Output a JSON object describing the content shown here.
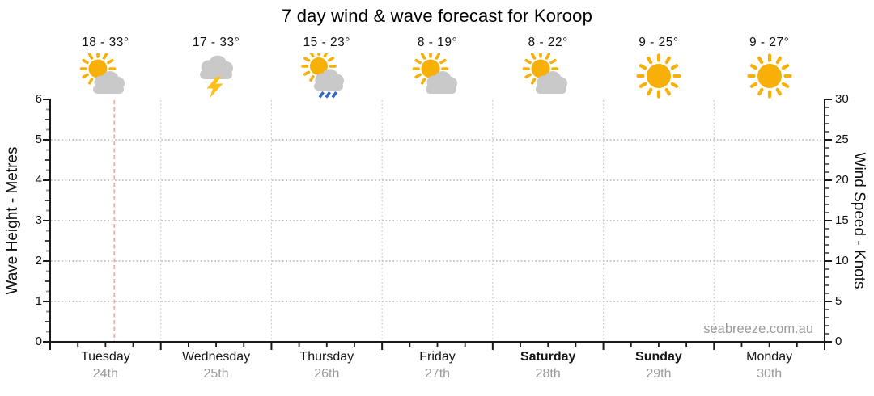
{
  "title": "7 day wind & wave forecast for Koroop",
  "watermark": "seabreeze.com.au",
  "left_axis": {
    "label": "Wave Height - Metres",
    "ticks": [
      0,
      1,
      2,
      3,
      4,
      5,
      6
    ]
  },
  "right_axis": {
    "label": "Wind Speed - Knots",
    "ticks": [
      0,
      5,
      10,
      15,
      20,
      25,
      30
    ]
  },
  "days": [
    {
      "name": "Tuesday",
      "date": "24th",
      "temp": "18 - 33°",
      "icon": "partly-cloudy",
      "weekend": false
    },
    {
      "name": "Wednesday",
      "date": "25th",
      "temp": "17 - 33°",
      "icon": "thunderstorm",
      "weekend": false
    },
    {
      "name": "Thursday",
      "date": "26th",
      "temp": "15 - 23°",
      "icon": "sun-showers",
      "weekend": false
    },
    {
      "name": "Friday",
      "date": "27th",
      "temp": "8 - 19°",
      "icon": "partly-cloudy",
      "weekend": false
    },
    {
      "name": "Saturday",
      "date": "28th",
      "temp": "8 - 22°",
      "icon": "partly-cloudy",
      "weekend": true
    },
    {
      "name": "Sunday",
      "date": "29th",
      "temp": "9 - 25°",
      "icon": "sunny",
      "weekend": true
    },
    {
      "name": "Monday",
      "date": "30th",
      "temp": "9 - 27°",
      "icon": "sunny",
      "weekend": false
    }
  ],
  "current_time_marker": {
    "day_index": 0,
    "day": "Tuesday",
    "position_fraction": 0.58
  },
  "colors": {
    "sun": "#F7B008",
    "cloud": "#C9C9C9",
    "rain": "#3366CC",
    "lightning": "#FBC01A",
    "axis": "#1A1A1A",
    "grid": "#A5A5A5",
    "day_boundary": "#C7C7C7",
    "minor_tick": "#999999",
    "half_tick": "#444444",
    "current_time_line": "#F5A7A1",
    "date_text": "#9A9A9A",
    "watermark_text": "#9B9B9B"
  },
  "chart_data": {
    "type": "line",
    "title": "7 day wind & wave forecast for Koroop",
    "x_axis": {
      "categories": [
        "Tuesday 24th",
        "Wednesday 25th",
        "Thursday 26th",
        "Friday 27th",
        "Saturday 28th",
        "Sunday 29th",
        "Monday 30th"
      ],
      "minor_ticks_per_day": 4,
      "day_boundary_gridlines": true
    },
    "y_axis_left": {
      "label": "Wave Height - Metres",
      "min": 0,
      "max": 6,
      "major_step": 1,
      "minor_step": 0.25
    },
    "y_axis_right": {
      "label": "Wind Speed - Knots",
      "min": 0,
      "max": 30,
      "major_step": 5,
      "minor_step": 1
    },
    "series": [],
    "notes": "Plot area is empty (no wave/wind series drawn); horizontal dotted gridlines at 1-5 m / 5-25 kn, dotted vertical day boundaries, and a dashed salmon current-time marker within Tuesday at ~58% of the day.",
    "grid": true,
    "legend": false,
    "daily_forecast": [
      {
        "day": "Tuesday",
        "date": "24th",
        "temp_low_c": 18,
        "temp_high_c": 33,
        "conditions": "partly-cloudy"
      },
      {
        "day": "Wednesday",
        "date": "25th",
        "temp_low_c": 17,
        "temp_high_c": 33,
        "conditions": "thunderstorm"
      },
      {
        "day": "Thursday",
        "date": "26th",
        "temp_low_c": 15,
        "temp_high_c": 23,
        "conditions": "sun-showers"
      },
      {
        "day": "Friday",
        "date": "27th",
        "temp_low_c": 8,
        "temp_high_c": 19,
        "conditions": "partly-cloudy"
      },
      {
        "day": "Saturday",
        "date": "28th",
        "temp_low_c": 8,
        "temp_high_c": 22,
        "conditions": "partly-cloudy"
      },
      {
        "day": "Sunday",
        "date": "29th",
        "temp_low_c": 9,
        "temp_high_c": 25,
        "conditions": "sunny"
      },
      {
        "day": "Monday",
        "date": "30th",
        "temp_low_c": 9,
        "temp_high_c": 27,
        "conditions": "sunny"
      }
    ]
  }
}
